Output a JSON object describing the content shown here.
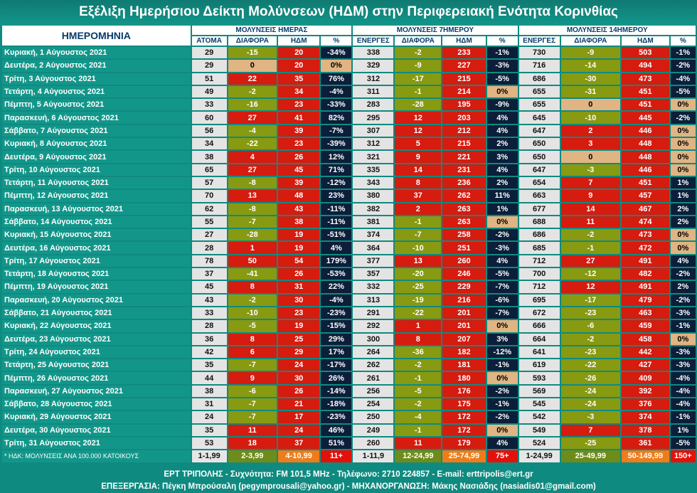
{
  "title": "Εξέλιξη Ημερήσιου Δείκτη Μολύνσεων (ΗΔΜ) στην Περιφερειακή Ενότητα Κορινθίας",
  "headers": {
    "date": "ΗΜΕΡΟΜΗΝΙΑ",
    "group_day": "ΜΟΛΥΝΣΕΙΣ ΗΜΕΡΑΣ",
    "group_7": "ΜΟΛΥΝΣΕΙΣ 7ΗΜΕΡΟΥ",
    "group_14": "ΜΟΛΥΝΣΕΙΣ 14ΗΜΕΡΟΥ",
    "atoma": "ΑΤΟΜΑ",
    "diafora": "ΔΙΑΦΟΡΑ",
    "hdm": "ΗΔΜ",
    "pct": "%",
    "energes": "ΕΝΕΡΓΕΣ"
  },
  "rows": [
    [
      "Κυριακή, 1 Αύγουστος 2021",
      "29",
      "-15",
      "20",
      "-34%",
      "338",
      "-2",
      "233",
      "-1%",
      "730",
      "-9",
      "503",
      "-1%"
    ],
    [
      "Δευτέρα, 2 Αύγουστος 2021",
      "29",
      "0",
      "20",
      "0%",
      "329",
      "-9",
      "227",
      "-3%",
      "716",
      "-14",
      "494",
      "-2%"
    ],
    [
      "Τρίτη, 3 Αύγουστος 2021",
      "51",
      "22",
      "35",
      "76%",
      "312",
      "-17",
      "215",
      "-5%",
      "686",
      "-30",
      "473",
      "-4%"
    ],
    [
      "Τετάρτη, 4 Αύγουστος 2021",
      "49",
      "-2",
      "34",
      "-4%",
      "311",
      "-1",
      "214",
      "0%",
      "655",
      "-31",
      "451",
      "-5%"
    ],
    [
      "Πέμπτη, 5 Αύγουστος 2021",
      "33",
      "-16",
      "23",
      "-33%",
      "283",
      "-28",
      "195",
      "-9%",
      "655",
      "0",
      "451",
      "0%"
    ],
    [
      "Παρασκευή, 6 Αύγουστος 2021",
      "60",
      "27",
      "41",
      "82%",
      "295",
      "12",
      "203",
      "4%",
      "645",
      "-10",
      "445",
      "-2%"
    ],
    [
      "Σάββατο, 7 Αύγουστος 2021",
      "56",
      "-4",
      "39",
      "-7%",
      "307",
      "12",
      "212",
      "4%",
      "647",
      "2",
      "446",
      "0%"
    ],
    [
      "Κυριακή, 8 Αύγουστος 2021",
      "34",
      "-22",
      "23",
      "-39%",
      "312",
      "5",
      "215",
      "2%",
      "650",
      "3",
      "448",
      "0%"
    ],
    [
      "Δευτέρα, 9 Αύγουστος 2021",
      "38",
      "4",
      "26",
      "12%",
      "321",
      "9",
      "221",
      "3%",
      "650",
      "0",
      "448",
      "0%"
    ],
    [
      "Τρίτη, 10 Αύγουστος 2021",
      "65",
      "27",
      "45",
      "71%",
      "335",
      "14",
      "231",
      "4%",
      "647",
      "-3",
      "446",
      "0%"
    ],
    [
      "Τετάρτη, 11 Αύγουστος 2021",
      "57",
      "-8",
      "39",
      "-12%",
      "343",
      "8",
      "236",
      "2%",
      "654",
      "7",
      "451",
      "1%"
    ],
    [
      "Πέμπτη, 12 Αύγουστος 2021",
      "70",
      "13",
      "48",
      "23%",
      "380",
      "37",
      "262",
      "11%",
      "663",
      "9",
      "457",
      "1%"
    ],
    [
      "Παρασκευή, 13 Αύγουστος 2021",
      "62",
      "-8",
      "43",
      "-11%",
      "382",
      "2",
      "263",
      "1%",
      "677",
      "14",
      "467",
      "2%"
    ],
    [
      "Σάββατο, 14 Αύγουστος 2021",
      "55",
      "-7",
      "38",
      "-11%",
      "381",
      "-1",
      "263",
      "0%",
      "688",
      "11",
      "474",
      "2%"
    ],
    [
      "Κυριακή, 15 Αύγουστος 2021",
      "27",
      "-28",
      "19",
      "-51%",
      "374",
      "-7",
      "258",
      "-2%",
      "686",
      "-2",
      "473",
      "0%"
    ],
    [
      "Δευτέρα, 16 Αύγουστος 2021",
      "28",
      "1",
      "19",
      "4%",
      "364",
      "-10",
      "251",
      "-3%",
      "685",
      "-1",
      "472",
      "0%"
    ],
    [
      "Τρίτη, 17 Αύγουστος 2021",
      "78",
      "50",
      "54",
      "179%",
      "377",
      "13",
      "260",
      "4%",
      "712",
      "27",
      "491",
      "4%"
    ],
    [
      "Τετάρτη, 18 Αύγουστος 2021",
      "37",
      "-41",
      "26",
      "-53%",
      "357",
      "-20",
      "246",
      "-5%",
      "700",
      "-12",
      "482",
      "-2%"
    ],
    [
      "Πέμπτη, 19 Αύγουστος 2021",
      "45",
      "8",
      "31",
      "22%",
      "332",
      "-25",
      "229",
      "-7%",
      "712",
      "12",
      "491",
      "2%"
    ],
    [
      "Παρασκευή, 20 Αύγουστος 2021",
      "43",
      "-2",
      "30",
      "-4%",
      "313",
      "-19",
      "216",
      "-6%",
      "695",
      "-17",
      "479",
      "-2%"
    ],
    [
      "Σάββατο, 21 Αύγουστος 2021",
      "33",
      "-10",
      "23",
      "-23%",
      "291",
      "-22",
      "201",
      "-7%",
      "672",
      "-23",
      "463",
      "-3%"
    ],
    [
      "Κυριακή, 22 Αύγουστος 2021",
      "28",
      "-5",
      "19",
      "-15%",
      "292",
      "1",
      "201",
      "0%",
      "666",
      "-6",
      "459",
      "-1%"
    ],
    [
      "Δευτέρα, 23 Αύγουστος 2021",
      "36",
      "8",
      "25",
      "29%",
      "300",
      "8",
      "207",
      "3%",
      "664",
      "-2",
      "458",
      "0%"
    ],
    [
      "Τρίτη, 24 Αύγουστος 2021",
      "42",
      "6",
      "29",
      "17%",
      "264",
      "-36",
      "182",
      "-12%",
      "641",
      "-23",
      "442",
      "-3%"
    ],
    [
      "Τετάρτη, 25 Αύγουστος 2021",
      "35",
      "-7",
      "24",
      "-17%",
      "262",
      "-2",
      "181",
      "-1%",
      "619",
      "-22",
      "427",
      "-3%"
    ],
    [
      "Πέμπτη, 26 Αύγουστος 2021",
      "44",
      "9",
      "30",
      "26%",
      "261",
      "-1",
      "180",
      "0%",
      "593",
      "-26",
      "409",
      "-4%"
    ],
    [
      "Παρασκευή, 27 Αύγουστος 2021",
      "38",
      "-6",
      "26",
      "-14%",
      "256",
      "-5",
      "176",
      "-2%",
      "569",
      "-24",
      "392",
      "-4%"
    ],
    [
      "Σάββατο, 28 Αύγουστος 2021",
      "31",
      "-7",
      "21",
      "-18%",
      "254",
      "-2",
      "175",
      "-1%",
      "545",
      "-24",
      "376",
      "-4%"
    ],
    [
      "Κυριακή, 29 Αύγουστος 2021",
      "24",
      "-7",
      "17",
      "-23%",
      "250",
      "-4",
      "172",
      "-2%",
      "542",
      "-3",
      "374",
      "-1%"
    ],
    [
      "Δευτέρα, 30 Αύγουστος 2021",
      "35",
      "11",
      "24",
      "46%",
      "249",
      "-1",
      "172",
      "0%",
      "549",
      "7",
      "378",
      "1%"
    ],
    [
      "Τρίτη, 31 Αύγουστος 2021",
      "53",
      "18",
      "37",
      "51%",
      "260",
      "11",
      "179",
      "4%",
      "524",
      "-25",
      "361",
      "-5%"
    ]
  ],
  "legend": {
    "note": "* ΗΔΚ: ΜΟΛΥΝΣΕΙΣ ΑΝΑ 100.000 ΚΑΤΟΙΚΟΥΣ",
    "day": [
      "1-1,99",
      "2-3,99",
      "4-10,99",
      "11+"
    ],
    "w7": [
      "1-11,9",
      "12-24,99",
      "25-74,99",
      "75+"
    ],
    "w14": [
      "1-24,99",
      "25-49,99",
      "50-149,99",
      "150+"
    ]
  },
  "colors": {
    "background": "#0f8a80",
    "red": "#d61b0f",
    "olive": "#879a12",
    "light_beige": "#e0b483",
    "navy": "#0b1f3a"
  },
  "footer": {
    "line1": "ΕΡΤ ΤΡΙΠΟΛΗΣ  -  Συχνότητα:  FM 101,5 MHz  -  Τηλέφωνο:  2710 224857  -  E-mail: erttripolis@ert.gr",
    "line2": "ΕΠΕΞΕΡΓΑΣΙΑ: Πέγκη Μπρούσαλη (pegymprousali@yahoo.gr) - ΜΗΧΑΝΟΡΓΑΝΩΣΗ: Μάκης Νασιάδης (nasiadis01@gmail.com)"
  }
}
